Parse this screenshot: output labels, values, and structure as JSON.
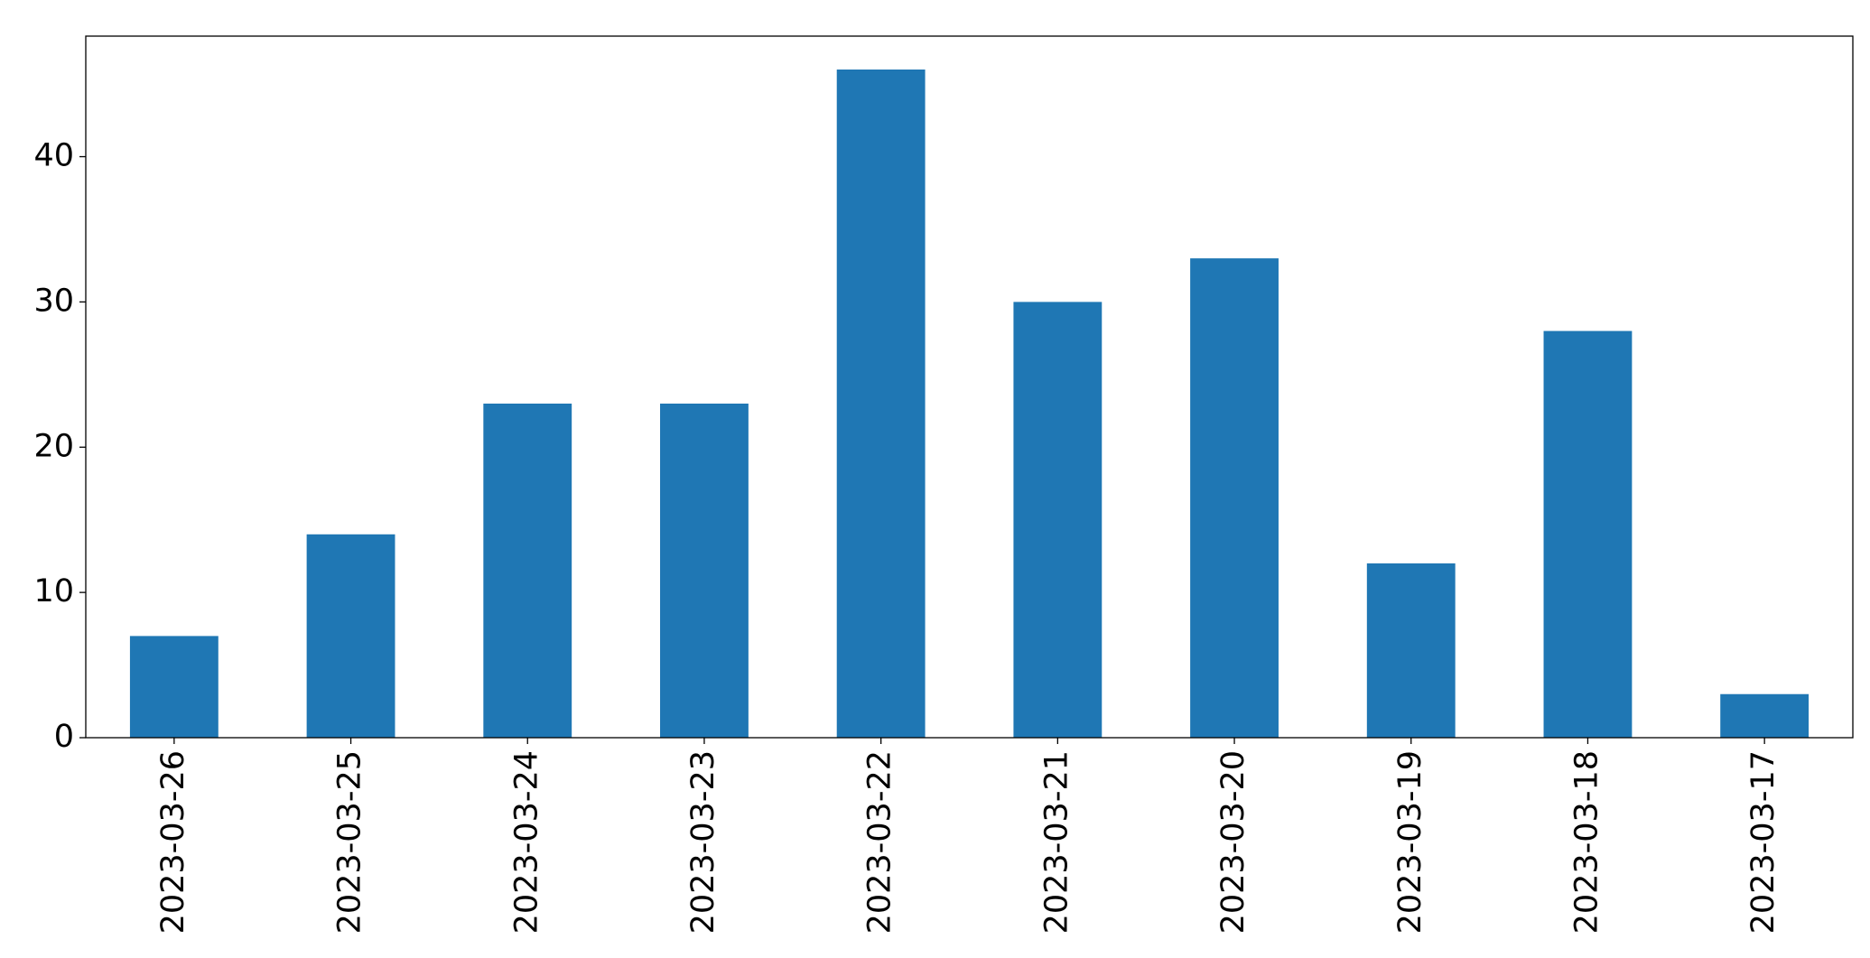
{
  "chart_data": {
    "type": "bar",
    "categories": [
      "2023-03-26",
      "2023-03-25",
      "2023-03-24",
      "2023-03-23",
      "2023-03-22",
      "2023-03-21",
      "2023-03-20",
      "2023-03-19",
      "2023-03-18",
      "2023-03-17"
    ],
    "values": [
      7,
      14,
      23,
      23,
      46,
      30,
      33,
      12,
      28,
      3
    ],
    "color": "#1f77b4",
    "ylim": [
      0,
      48.3
    ],
    "yticks": [
      0,
      10,
      20,
      30,
      40
    ],
    "grid": false
  }
}
